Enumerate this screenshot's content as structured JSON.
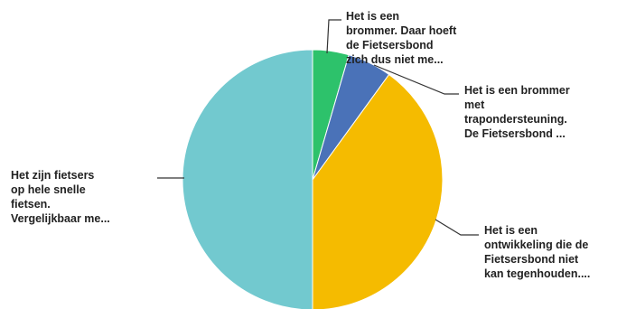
{
  "chart_data": {
    "type": "pie",
    "title": "",
    "slices": [
      {
        "label": [
          "Het is een",
          "brommer. Daar hoeft",
          "de Fietsersbond",
          "zich dus niet me..."
        ],
        "value": 4.5,
        "color": "#2dc26b"
      },
      {
        "label": [
          "Het is een brommer",
          "met",
          "trapondersteuning.",
          "De Fietsersbond ..."
        ],
        "value": 5.5,
        "color": "#4a72b8"
      },
      {
        "label": [
          "Het is een",
          "ontwikkeling die de",
          "Fietsersbond niet",
          "kan tegenhouden...."
        ],
        "value": 40,
        "color": "#f5bb00"
      },
      {
        "label": [
          "Het zijn fietsers",
          "op hele snelle",
          "fietsen.",
          "Vergelijkbaar me..."
        ],
        "value": 50,
        "color": "#72c9cf"
      }
    ]
  }
}
